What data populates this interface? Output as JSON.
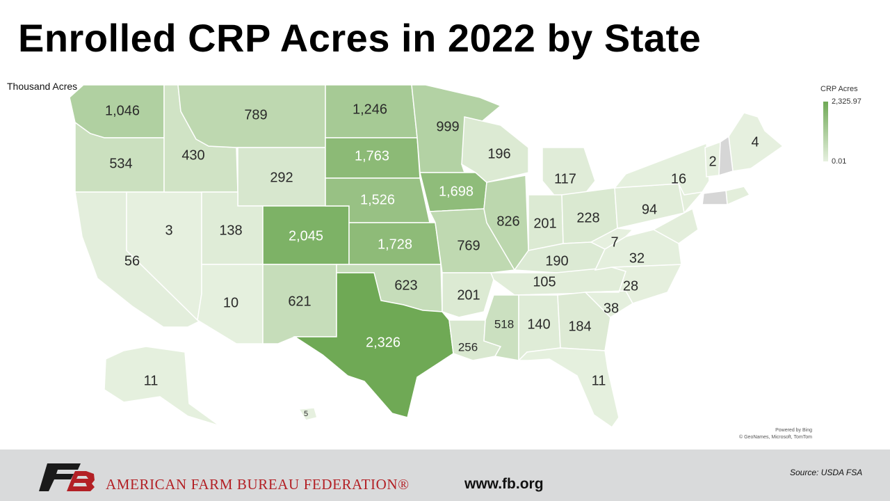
{
  "title": "Enrolled CRP Acres in 2022 by State",
  "units_label": "Thousand Acres",
  "legend": {
    "title": "CRP Acres",
    "max_label": "2,325.97",
    "min_label": "0.01",
    "max_value": 2325.97,
    "min_value": 0.01,
    "color_high": "#6fa955",
    "color_low": "#e6f0df",
    "no_data_color": "#d6d6d6"
  },
  "map_credits": [
    "Powered by Bing",
    "© GeoNames, Microsoft, TomTom"
  ],
  "footer": {
    "org_name": "AMERICAN FARM BUREAU FEDERATION®",
    "website": "www.fb.org",
    "source": "Source:  USDA  FSA",
    "brand_color": "#b32025"
  },
  "chart_data": {
    "type": "choropleth",
    "title": "Enrolled CRP Acres in 2022 by State",
    "unit": "Thousand Acres",
    "legend_title": "CRP Acres",
    "value_range": [
      0.01,
      2325.97
    ],
    "states": [
      {
        "state": "Washington",
        "label": "1,046",
        "value": 1046
      },
      {
        "state": "Oregon",
        "label": "534",
        "value": 534
      },
      {
        "state": "California",
        "label": "56",
        "value": 56
      },
      {
        "state": "Nevada",
        "label": "3",
        "value": 3
      },
      {
        "state": "Idaho",
        "label": "430",
        "value": 430
      },
      {
        "state": "Montana",
        "label": "789",
        "value": 789
      },
      {
        "state": "Wyoming",
        "label": "292",
        "value": 292
      },
      {
        "state": "Utah",
        "label": "138",
        "value": 138
      },
      {
        "state": "Arizona",
        "label": "10",
        "value": 10
      },
      {
        "state": "Colorado",
        "label": "2,045",
        "value": 2045
      },
      {
        "state": "New Mexico",
        "label": "621",
        "value": 621
      },
      {
        "state": "North Dakota",
        "label": "1,246",
        "value": 1246
      },
      {
        "state": "South Dakota",
        "label": "1,763",
        "value": 1763
      },
      {
        "state": "Nebraska",
        "label": "1,526",
        "value": 1526
      },
      {
        "state": "Kansas",
        "label": "1,728",
        "value": 1728
      },
      {
        "state": "Oklahoma",
        "label": "623",
        "value": 623
      },
      {
        "state": "Texas",
        "label": "2,326",
        "value": 2326
      },
      {
        "state": "Minnesota",
        "label": "999",
        "value": 999
      },
      {
        "state": "Iowa",
        "label": "1,698",
        "value": 1698
      },
      {
        "state": "Missouri",
        "label": "769",
        "value": 769
      },
      {
        "state": "Arkansas",
        "label": "201",
        "value": 201
      },
      {
        "state": "Louisiana",
        "label": "256",
        "value": 256
      },
      {
        "state": "Wisconsin",
        "label": "196",
        "value": 196
      },
      {
        "state": "Illinois",
        "label": "826",
        "value": 826
      },
      {
        "state": "Michigan",
        "label": "117",
        "value": 117
      },
      {
        "state": "Indiana",
        "label": "201",
        "value": 201
      },
      {
        "state": "Ohio",
        "label": "228",
        "value": 228
      },
      {
        "state": "Kentucky",
        "label": "190",
        "value": 190
      },
      {
        "state": "Tennessee",
        "label": "105",
        "value": 105
      },
      {
        "state": "Mississippi",
        "label": "518",
        "value": 518
      },
      {
        "state": "Alabama",
        "label": "140",
        "value": 140
      },
      {
        "state": "Georgia",
        "label": "184",
        "value": 184
      },
      {
        "state": "Florida",
        "label": "11",
        "value": 11
      },
      {
        "state": "South Carolina",
        "label": "38",
        "value": 38
      },
      {
        "state": "North Carolina",
        "label": "28",
        "value": 28
      },
      {
        "state": "Virginia",
        "label": "32",
        "value": 32
      },
      {
        "state": "West Virginia",
        "label": "7",
        "value": 7
      },
      {
        "state": "Pennsylvania",
        "label": "94",
        "value": 94
      },
      {
        "state": "New York",
        "label": "16",
        "value": 16
      },
      {
        "state": "Vermont",
        "label": "2",
        "value": 2
      },
      {
        "state": "Maine",
        "label": "4",
        "value": 4
      },
      {
        "state": "Alaska",
        "label": "11",
        "value": 11
      },
      {
        "state": "Hawaii",
        "label": "5",
        "value": 5
      },
      {
        "state": "New Hampshire",
        "label": "",
        "value": null
      },
      {
        "state": "Connecticut",
        "label": "",
        "value": null
      }
    ]
  }
}
